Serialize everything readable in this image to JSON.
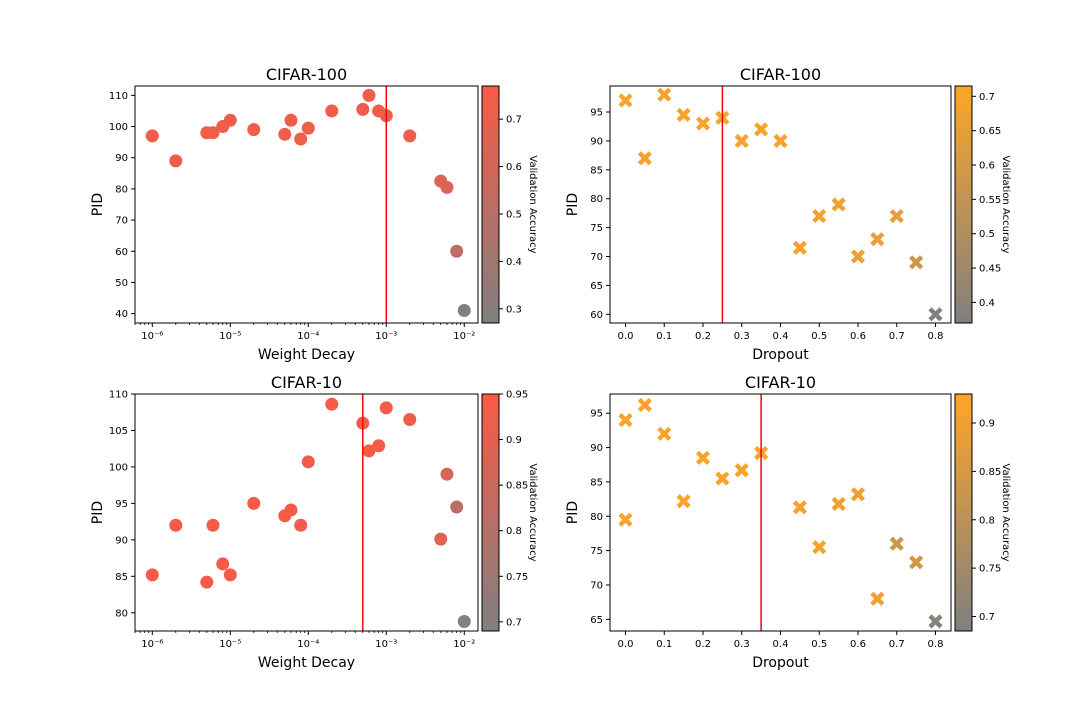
{
  "chart_data": [
    {
      "type": "scatter",
      "title": "CIFAR-100",
      "xlabel": "Weight Decay",
      "ylabel": "PID",
      "xscale": "log",
      "xlim": [
        6e-07,
        0.015
      ],
      "ylim": [
        37,
        113
      ],
      "xticks": [
        1e-06,
        1e-05,
        0.0001,
        0.001,
        0.01
      ],
      "xtick_labels": [
        "10⁻⁶",
        "10⁻⁵",
        "10⁻⁴",
        "10⁻³",
        "10⁻²"
      ],
      "yticks": [
        40,
        50,
        60,
        70,
        80,
        90,
        100,
        110
      ],
      "vline": 0.001,
      "marker": "circle",
      "color": "#fa5a46",
      "colorbar": {
        "label": "Validation Accuracy",
        "range": [
          0.27,
          0.77
        ],
        "ticks": [
          0.3,
          0.4,
          0.5,
          0.6,
          0.7
        ]
      },
      "points": [
        {
          "x": 1e-06,
          "y": 97,
          "acc": 0.73
        },
        {
          "x": 2e-06,
          "y": 89,
          "acc": 0.73
        },
        {
          "x": 5e-06,
          "y": 98,
          "acc": 0.73
        },
        {
          "x": 6e-06,
          "y": 98,
          "acc": 0.73
        },
        {
          "x": 8e-06,
          "y": 100,
          "acc": 0.73
        },
        {
          "x": 1e-05,
          "y": 102,
          "acc": 0.73
        },
        {
          "x": 2e-05,
          "y": 99,
          "acc": 0.73
        },
        {
          "x": 5e-05,
          "y": 97.5,
          "acc": 0.73
        },
        {
          "x": 6e-05,
          "y": 102,
          "acc": 0.73
        },
        {
          "x": 8e-05,
          "y": 96,
          "acc": 0.73
        },
        {
          "x": 0.0001,
          "y": 99.5,
          "acc": 0.73
        },
        {
          "x": 0.0002,
          "y": 105,
          "acc": 0.73
        },
        {
          "x": 0.0005,
          "y": 105.5,
          "acc": 0.73
        },
        {
          "x": 0.0006,
          "y": 110,
          "acc": 0.74
        },
        {
          "x": 0.0008,
          "y": 105,
          "acc": 0.73
        },
        {
          "x": 0.001,
          "y": 103.5,
          "acc": 0.73
        },
        {
          "x": 0.002,
          "y": 97,
          "acc": 0.72
        },
        {
          "x": 0.005,
          "y": 82.5,
          "acc": 0.65
        },
        {
          "x": 0.006,
          "y": 80.5,
          "acc": 0.64
        },
        {
          "x": 0.008,
          "y": 60,
          "acc": 0.52
        },
        {
          "x": 0.01,
          "y": 41,
          "acc": 0.28
        }
      ]
    },
    {
      "type": "scatter",
      "title": "CIFAR-100",
      "xlabel": "Dropout",
      "ylabel": "PID",
      "xscale": "linear",
      "xlim": [
        -0.04,
        0.84
      ],
      "ylim": [
        58.5,
        99.5
      ],
      "xticks": [
        0.0,
        0.1,
        0.2,
        0.3,
        0.4,
        0.5,
        0.6,
        0.7,
        0.8
      ],
      "xtick_labels": [
        "0.0",
        "0.1",
        "0.2",
        "0.3",
        "0.4",
        "0.5",
        "0.6",
        "0.7",
        "0.8"
      ],
      "yticks": [
        60,
        65,
        70,
        75,
        80,
        85,
        90,
        95
      ],
      "vline": 0.25,
      "marker": "x",
      "color": "#ffa528",
      "colorbar": {
        "label": "Validation Accuracy",
        "range": [
          0.37,
          0.715
        ],
        "ticks": [
          0.4,
          0.45,
          0.5,
          0.55,
          0.6,
          0.65,
          0.7
        ]
      },
      "points": [
        {
          "x": 0.0,
          "y": 97,
          "acc": 0.7
        },
        {
          "x": 0.05,
          "y": 87,
          "acc": 0.69
        },
        {
          "x": 0.1,
          "y": 98,
          "acc": 0.7
        },
        {
          "x": 0.15,
          "y": 94.5,
          "acc": 0.7
        },
        {
          "x": 0.2,
          "y": 93,
          "acc": 0.7
        },
        {
          "x": 0.25,
          "y": 94,
          "acc": 0.7
        },
        {
          "x": 0.3,
          "y": 90,
          "acc": 0.7
        },
        {
          "x": 0.35,
          "y": 92,
          "acc": 0.7
        },
        {
          "x": 0.4,
          "y": 90,
          "acc": 0.69
        },
        {
          "x": 0.45,
          "y": 71.5,
          "acc": 0.69
        },
        {
          "x": 0.5,
          "y": 77,
          "acc": 0.69
        },
        {
          "x": 0.55,
          "y": 79,
          "acc": 0.68
        },
        {
          "x": 0.6,
          "y": 70,
          "acc": 0.67
        },
        {
          "x": 0.65,
          "y": 73,
          "acc": 0.66
        },
        {
          "x": 0.7,
          "y": 77,
          "acc": 0.65
        },
        {
          "x": 0.75,
          "y": 69,
          "acc": 0.58
        },
        {
          "x": 0.8,
          "y": 60,
          "acc": 0.38
        }
      ]
    },
    {
      "type": "scatter",
      "title": "CIFAR-10",
      "xlabel": "Weight Decay",
      "ylabel": "PID",
      "xscale": "log",
      "xlim": [
        6e-07,
        0.015
      ],
      "ylim": [
        77.5,
        110
      ],
      "xticks": [
        1e-06,
        1e-05,
        0.0001,
        0.001,
        0.01
      ],
      "xtick_labels": [
        "10⁻⁶",
        "10⁻⁵",
        "10⁻⁴",
        "10⁻³",
        "10⁻²"
      ],
      "yticks": [
        80,
        85,
        90,
        95,
        100,
        105,
        110
      ],
      "vline": 0.0005,
      "marker": "circle",
      "color": "#fa5a46",
      "colorbar": {
        "label": "Validation Accuracy",
        "range": [
          0.69,
          0.95
        ],
        "ticks": [
          0.7,
          0.75,
          0.8,
          0.85,
          0.9,
          0.95
        ]
      },
      "points": [
        {
          "x": 1e-06,
          "y": 85.2,
          "acc": 0.94
        },
        {
          "x": 2e-06,
          "y": 92,
          "acc": 0.94
        },
        {
          "x": 5e-06,
          "y": 84.2,
          "acc": 0.94
        },
        {
          "x": 6e-06,
          "y": 92,
          "acc": 0.94
        },
        {
          "x": 8e-06,
          "y": 86.7,
          "acc": 0.94
        },
        {
          "x": 1e-05,
          "y": 85.2,
          "acc": 0.94
        },
        {
          "x": 2e-05,
          "y": 95,
          "acc": 0.94
        },
        {
          "x": 5e-05,
          "y": 93.3,
          "acc": 0.94
        },
        {
          "x": 6e-05,
          "y": 94.1,
          "acc": 0.94
        },
        {
          "x": 8e-05,
          "y": 92,
          "acc": 0.94
        },
        {
          "x": 0.0001,
          "y": 100.7,
          "acc": 0.94
        },
        {
          "x": 0.0002,
          "y": 108.6,
          "acc": 0.94
        },
        {
          "x": 0.0005,
          "y": 106,
          "acc": 0.94
        },
        {
          "x": 0.0006,
          "y": 102.2,
          "acc": 0.94
        },
        {
          "x": 0.0008,
          "y": 102.9,
          "acc": 0.94
        },
        {
          "x": 0.001,
          "y": 108.1,
          "acc": 0.94
        },
        {
          "x": 0.002,
          "y": 106.5,
          "acc": 0.93
        },
        {
          "x": 0.005,
          "y": 90.1,
          "acc": 0.89
        },
        {
          "x": 0.006,
          "y": 99,
          "acc": 0.87
        },
        {
          "x": 0.008,
          "y": 94.5,
          "acc": 0.82
        },
        {
          "x": 0.01,
          "y": 78.8,
          "acc": 0.7
        }
      ]
    },
    {
      "type": "scatter",
      "title": "CIFAR-10",
      "xlabel": "Dropout",
      "ylabel": "PID",
      "xscale": "linear",
      "xlim": [
        -0.04,
        0.84
      ],
      "ylim": [
        63.3,
        97.8
      ],
      "xticks": [
        0.0,
        0.1,
        0.2,
        0.3,
        0.4,
        0.5,
        0.6,
        0.7,
        0.8
      ],
      "xtick_labels": [
        "0.0",
        "0.1",
        "0.2",
        "0.3",
        "0.4",
        "0.5",
        "0.6",
        "0.7",
        "0.8"
      ],
      "yticks": [
        65,
        70,
        75,
        80,
        85,
        90,
        95
      ],
      "vline": 0.35,
      "marker": "x",
      "color": "#ffa528",
      "colorbar": {
        "label": "Validation Accuracy",
        "range": [
          0.685,
          0.93
        ],
        "ticks": [
          0.7,
          0.75,
          0.8,
          0.85,
          0.9
        ]
      },
      "points": [
        {
          "x": 0.0,
          "y": 94,
          "acc": 0.92
        },
        {
          "x": 0.0,
          "y": 79.5,
          "acc": 0.92
        },
        {
          "x": 0.05,
          "y": 96.2,
          "acc": 0.92
        },
        {
          "x": 0.1,
          "y": 92,
          "acc": 0.92
        },
        {
          "x": 0.15,
          "y": 82.2,
          "acc": 0.92
        },
        {
          "x": 0.2,
          "y": 88.5,
          "acc": 0.92
        },
        {
          "x": 0.25,
          "y": 85.5,
          "acc": 0.92
        },
        {
          "x": 0.3,
          "y": 86.7,
          "acc": 0.92
        },
        {
          "x": 0.35,
          "y": 89.2,
          "acc": 0.92
        },
        {
          "x": 0.45,
          "y": 81.3,
          "acc": 0.91
        },
        {
          "x": 0.5,
          "y": 75.5,
          "acc": 0.91
        },
        {
          "x": 0.55,
          "y": 81.8,
          "acc": 0.9
        },
        {
          "x": 0.6,
          "y": 83.2,
          "acc": 0.9
        },
        {
          "x": 0.65,
          "y": 68,
          "acc": 0.9
        },
        {
          "x": 0.7,
          "y": 76,
          "acc": 0.83
        },
        {
          "x": 0.75,
          "y": 73.3,
          "acc": 0.84
        },
        {
          "x": 0.8,
          "y": 64.7,
          "acc": 0.7
        }
      ]
    }
  ]
}
